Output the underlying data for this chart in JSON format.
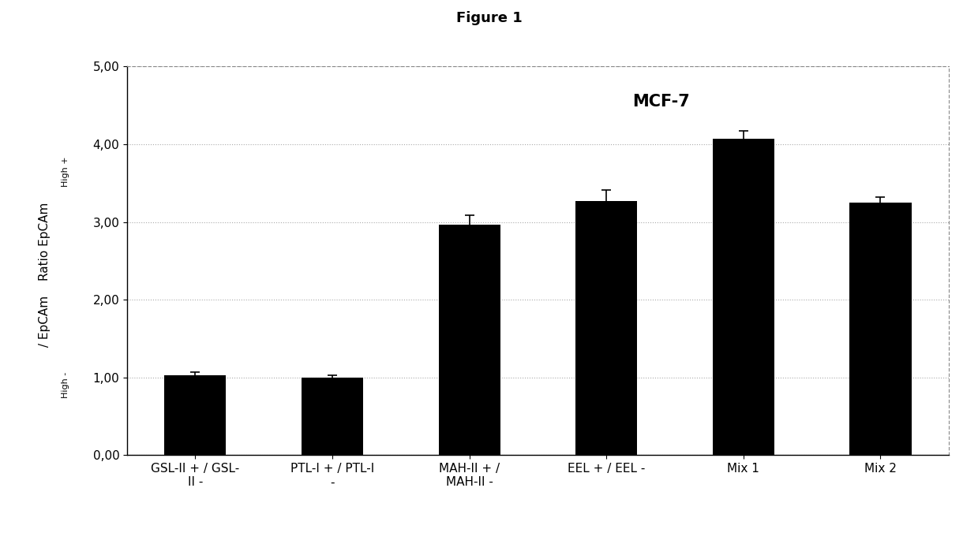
{
  "title": "Figure 1",
  "chart_title": "MCF-7",
  "categories": [
    "GSL-II + / GSL-\nII -",
    "PTL-I + / PTL-I\n-",
    "MAH-II + /\nMAH-II -",
    "EEL + / EEL -",
    "Mix 1",
    "Mix 2"
  ],
  "values": [
    1.03,
    1.0,
    2.97,
    3.27,
    4.07,
    3.25
  ],
  "errors": [
    0.04,
    0.03,
    0.12,
    0.14,
    0.1,
    0.07
  ],
  "bar_color": "#000000",
  "bar_width": 0.45,
  "ylim": [
    0,
    5.0
  ],
  "yticks": [
    0.0,
    1.0,
    2.0,
    3.0,
    4.0,
    5.0
  ],
  "ytick_labels": [
    "0,00",
    "1,00",
    "2,00",
    "3,00",
    "4,00",
    "5,00"
  ],
  "background_color": "#ffffff",
  "grid_color": "#aaaaaa",
  "title_fontsize": 13,
  "chart_title_fontsize": 15,
  "tick_fontsize": 11,
  "ylabel_main_fontsize": 11,
  "ylabel_super_fontsize": 8
}
